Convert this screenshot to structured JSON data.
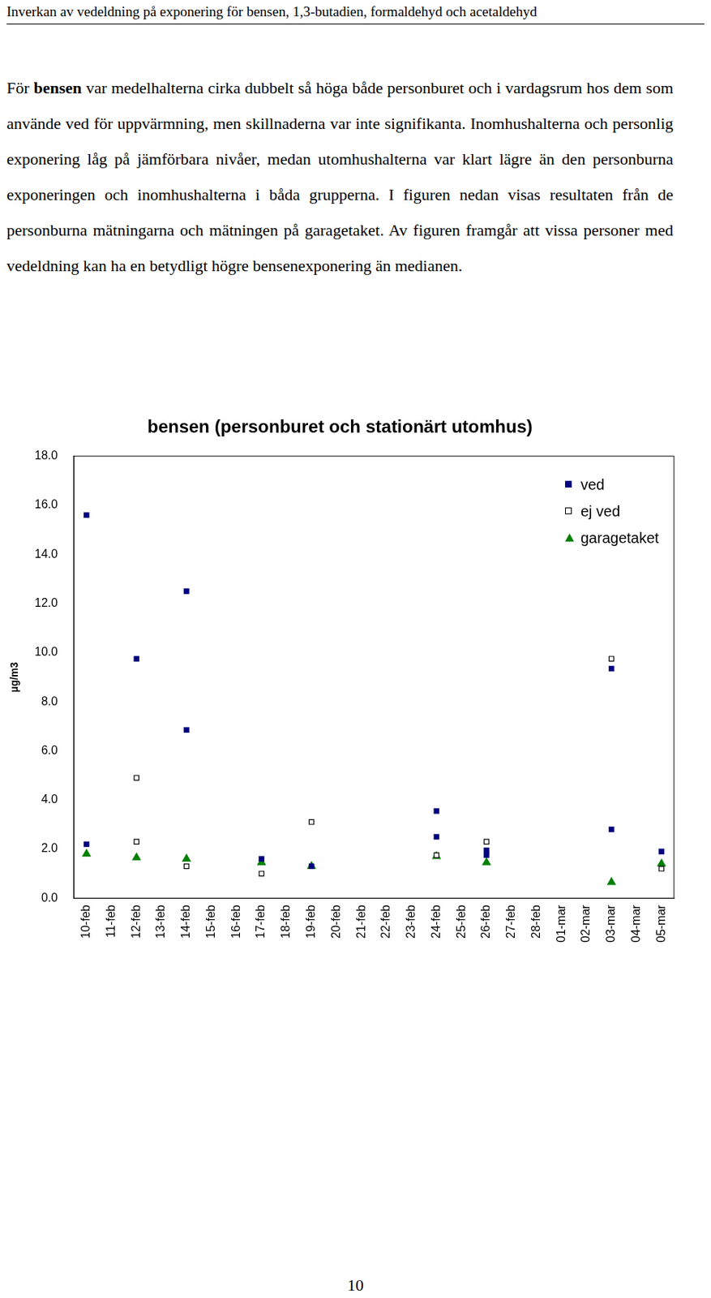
{
  "header": "Inverkan av vedeldning på exponering för bensen, 1,3-butadien, formaldehyd och acetaldehyd",
  "paragraph": [
    {
      "text": "För "
    },
    {
      "text": "bensen",
      "bold": true
    },
    {
      "text": " var medelhalterna cirka dubbelt så höga både personburet och i vardagsrum hos dem som använde ved för uppvärmning, men skillnaderna var inte signifikanta. Inomhushalterna och personlig exponering låg på jämförbara nivåer, medan utomhushalterna var klart lägre än den personburna exponeringen och inomhushalterna i båda grupperna. I figuren nedan visas resultaten från de personburna mätningarna och mätningen på garagetaket. Av figuren framgår att vissa personer med vedeldning kan ha en betydligt högre bensenexponering än medianen."
    }
  ],
  "chart_data": {
    "type": "scatter",
    "title": "bensen (personburet och stationärt utomhus)",
    "y_label": "µg/m3",
    "categories": [
      "10-feb",
      "11-feb",
      "12-feb",
      "13-feb",
      "14-feb",
      "15-feb",
      "16-feb",
      "17-feb",
      "18-feb",
      "19-feb",
      "20-feb",
      "21-feb",
      "22-feb",
      "23-feb",
      "24-feb",
      "25-feb",
      "26-feb",
      "27-feb",
      "28-feb",
      "01-mar",
      "02-mar",
      "03-mar",
      "04-mar",
      "05-mar"
    ],
    "series": [
      {
        "name": "ved",
        "color": "#000080",
        "marker": "square",
        "x": [
          "10-feb",
          "10-feb",
          "12-feb",
          "14-feb",
          "14-feb",
          "17-feb",
          "19-feb",
          "24-feb",
          "24-feb",
          "26-feb",
          "26-feb",
          "03-mar",
          "03-mar",
          "05-mar"
        ],
        "values": [
          15.6,
          2.2,
          9.75,
          12.5,
          6.85,
          1.6,
          1.3,
          3.55,
          2.5,
          1.95,
          1.75,
          9.35,
          2.8,
          1.9
        ]
      },
      {
        "name": "ej ved",
        "color": "#000000",
        "marker": "open square",
        "x": [
          "12-feb",
          "12-feb",
          "14-feb",
          "17-feb",
          "19-feb",
          "24-feb",
          "26-feb",
          "03-mar",
          "05-mar"
        ],
        "values": [
          4.9,
          2.3,
          1.3,
          1.0,
          3.1,
          1.75,
          2.3,
          9.75,
          1.2
        ]
      },
      {
        "name": "garagetaket",
        "color": "#008000",
        "marker": "triangle",
        "x": [
          "10-feb",
          "12-feb",
          "14-feb",
          "17-feb",
          "19-feb",
          "24-feb",
          "26-feb",
          "03-mar",
          "05-mar"
        ],
        "values": [
          1.8,
          1.65,
          1.6,
          1.45,
          1.3,
          1.7,
          1.45,
          0.65,
          1.4
        ]
      }
    ],
    "ylim": [
      0,
      18
    ],
    "yticks": [
      {
        "value": 0,
        "label": "0.0"
      },
      {
        "value": 2,
        "label": "2.0"
      },
      {
        "value": 4,
        "label": "4.0"
      },
      {
        "value": 6,
        "label": "6.0"
      },
      {
        "value": 8,
        "label": "8.0"
      },
      {
        "value": 10,
        "label": "10.0"
      },
      {
        "value": 12,
        "label": "12.0"
      },
      {
        "value": 14,
        "label": "14.0"
      },
      {
        "value": 16,
        "label": "16.0"
      },
      {
        "value": 18,
        "label": "18.0"
      }
    ],
    "grid": false,
    "legend": "upper right"
  },
  "page_number": 10
}
